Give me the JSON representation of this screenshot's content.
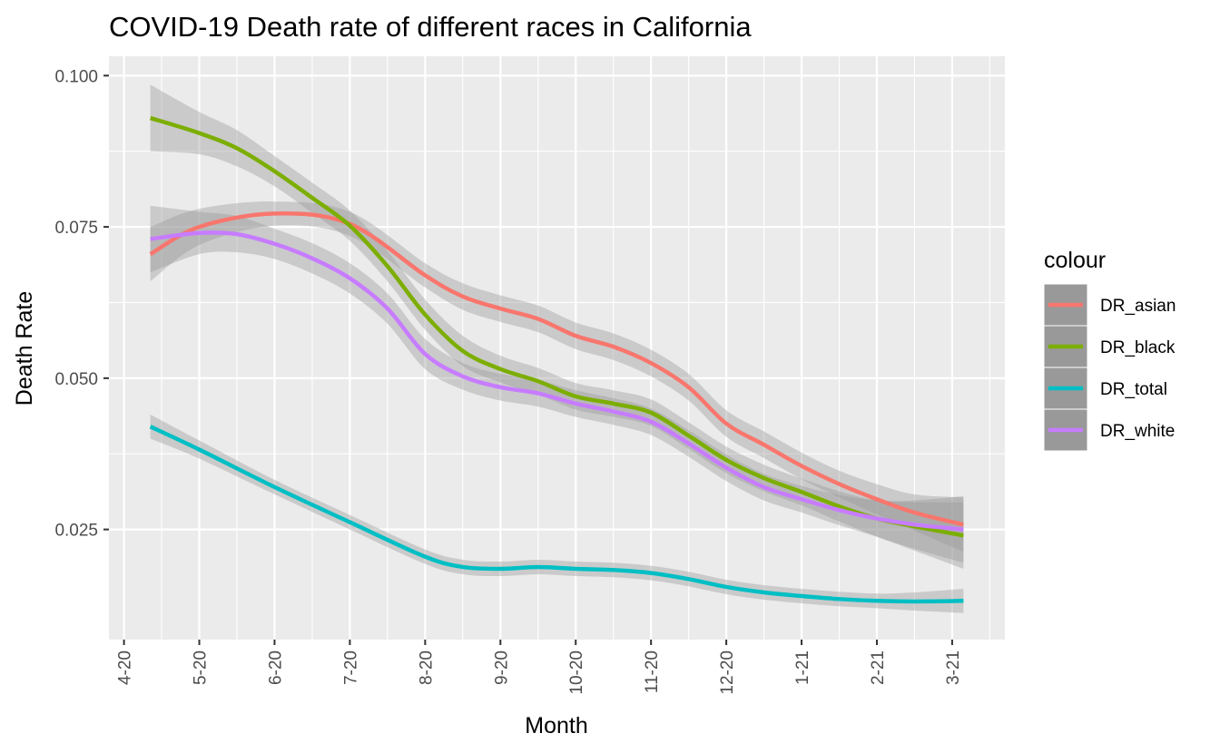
{
  "chart_data": {
    "type": "line",
    "title": "COVID-19 Death rate of different races in California",
    "xlabel": "Month",
    "ylabel": "Death Rate",
    "x_tick_labels": [
      "4-20",
      "5-20",
      "6-20",
      "7-20",
      "8-20",
      "9-20",
      "10-20",
      "11-20",
      "12-20",
      "1-21",
      "2-21",
      "3-21"
    ],
    "y_tick_labels": [
      "0.025",
      "0.050",
      "0.075",
      "0.100"
    ],
    "y_ticks": [
      0.025,
      0.05,
      0.075,
      0.1
    ],
    "ylim": [
      0.0068,
      0.1032
    ],
    "xlim": [
      -0.2,
      11.7
    ],
    "grid": true,
    "smoothed_with_confidence_band": true,
    "legend_position": "right",
    "legend": {
      "title": "colour"
    },
    "series": [
      {
        "name": "DR_asian",
        "color": "#F8766D",
        "x": [
          0.35,
          1.0,
          2.0,
          3.0,
          4.0,
          4.5,
          5.0,
          5.5,
          6.0,
          6.5,
          7.0,
          7.5,
          8.0,
          8.5,
          9.0,
          9.5,
          10.0,
          10.5,
          11.15
        ],
        "y": [
          0.0705,
          0.075,
          0.0772,
          0.0755,
          0.067,
          0.0635,
          0.0615,
          0.0598,
          0.057,
          0.0552,
          0.0525,
          0.0485,
          0.0425,
          0.039,
          0.0355,
          0.0325,
          0.03,
          0.0278,
          0.0258
        ],
        "band": [
          0.0045,
          0.003,
          0.002,
          0.002,
          0.002,
          0.0022,
          0.0022,
          0.0022,
          0.0022,
          0.0022,
          0.0022,
          0.0022,
          0.0022,
          0.0022,
          0.0022,
          0.0022,
          0.0025,
          0.003,
          0.0045
        ]
      },
      {
        "name": "DR_black",
        "color": "#7CAE00",
        "x": [
          0.35,
          1.0,
          1.5,
          2.0,
          2.5,
          3.0,
          3.5,
          4.0,
          4.5,
          5.0,
          5.5,
          6.0,
          6.5,
          7.0,
          7.5,
          8.0,
          8.5,
          9.0,
          9.5,
          10.0,
          10.5,
          11.15
        ],
        "y": [
          0.093,
          0.0905,
          0.088,
          0.0842,
          0.0798,
          0.0752,
          0.0685,
          0.0605,
          0.0545,
          0.0515,
          0.0495,
          0.047,
          0.0458,
          0.0443,
          0.0405,
          0.0365,
          0.0335,
          0.0312,
          0.0288,
          0.0268,
          0.0255,
          0.024
        ],
        "band": [
          0.0055,
          0.0035,
          0.003,
          0.0025,
          0.0025,
          0.0025,
          0.0025,
          0.0025,
          0.0025,
          0.0022,
          0.0022,
          0.0022,
          0.0022,
          0.0022,
          0.0022,
          0.0022,
          0.0022,
          0.0022,
          0.0025,
          0.003,
          0.004,
          0.0055
        ]
      },
      {
        "name": "DR_total",
        "color": "#00BFC4",
        "x": [
          0.35,
          1.0,
          2.0,
          3.0,
          4.0,
          4.5,
          5.0,
          5.5,
          6.0,
          6.5,
          7.0,
          7.5,
          8.0,
          8.5,
          9.0,
          9.5,
          10.0,
          10.5,
          11.15
        ],
        "y": [
          0.042,
          0.0382,
          0.032,
          0.0262,
          0.0205,
          0.0188,
          0.0185,
          0.0188,
          0.0185,
          0.0183,
          0.0178,
          0.0168,
          0.0155,
          0.0146,
          0.014,
          0.0135,
          0.0132,
          0.0131,
          0.0132
        ],
        "band": [
          0.002,
          0.0015,
          0.0012,
          0.0012,
          0.0012,
          0.0012,
          0.0012,
          0.0012,
          0.0012,
          0.0012,
          0.0012,
          0.0012,
          0.0012,
          0.0012,
          0.0012,
          0.0012,
          0.0012,
          0.0015,
          0.002
        ]
      },
      {
        "name": "DR_white",
        "color": "#C77CFF",
        "x": [
          0.35,
          1.0,
          1.5,
          2.0,
          2.5,
          3.0,
          3.5,
          4.0,
          4.5,
          5.0,
          5.5,
          6.0,
          6.5,
          7.0,
          7.5,
          8.0,
          8.5,
          9.0,
          9.5,
          10.0,
          10.5,
          11.15
        ],
        "y": [
          0.073,
          0.074,
          0.0738,
          0.0722,
          0.0698,
          0.0665,
          0.0615,
          0.054,
          0.0503,
          0.0485,
          0.0475,
          0.0458,
          0.0445,
          0.0428,
          0.0392,
          0.0352,
          0.032,
          0.03,
          0.0282,
          0.0268,
          0.0258,
          0.025
        ],
        "band": [
          0.0055,
          0.0035,
          0.003,
          0.0025,
          0.0025,
          0.0025,
          0.0025,
          0.0025,
          0.0022,
          0.0022,
          0.0022,
          0.0022,
          0.0022,
          0.0022,
          0.0022,
          0.0022,
          0.0022,
          0.0022,
          0.0025,
          0.003,
          0.004,
          0.0055
        ]
      }
    ]
  }
}
